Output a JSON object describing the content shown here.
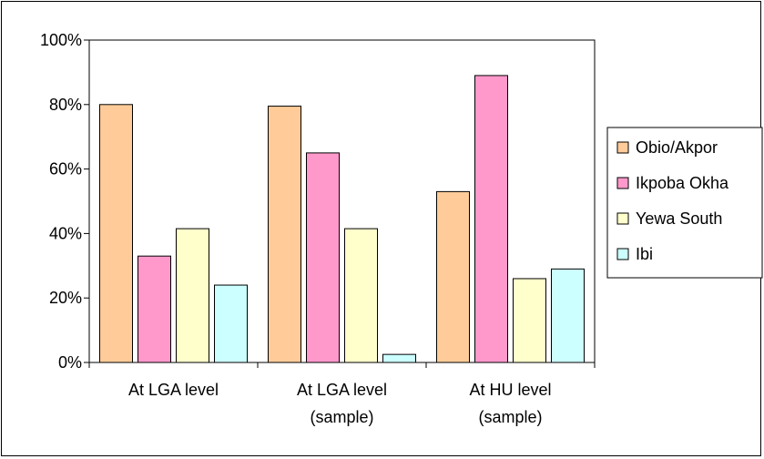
{
  "chart_data": {
    "type": "bar",
    "title": "",
    "xlabel": "",
    "ylabel": "",
    "categories": [
      [
        "At LGA level"
      ],
      [
        "At LGA level",
        "(sample)"
      ],
      [
        "At HU level",
        "(sample)"
      ]
    ],
    "series": [
      {
        "name": "Obio/Akpor",
        "color": "#FFCC99",
        "values": [
          0.8,
          0.795,
          0.53
        ]
      },
      {
        "name": "Ikpoba Okha",
        "color": "#FF99CC",
        "values": [
          0.33,
          0.65,
          0.89
        ]
      },
      {
        "name": "Yewa South",
        "color": "#FFFFCC",
        "values": [
          0.415,
          0.415,
          0.26
        ]
      },
      {
        "name": "Ibi",
        "color": "#CCFFFF",
        "values": [
          0.24,
          0.025,
          0.29
        ]
      }
    ],
    "ylim": [
      0,
      1
    ],
    "yticks": [
      0,
      0.2,
      0.4,
      0.6,
      0.8,
      1.0
    ],
    "ytick_labels": [
      "0%",
      "20%",
      "40%",
      "60%",
      "80%",
      "100%"
    ],
    "grid": false,
    "legend_position": "right"
  }
}
